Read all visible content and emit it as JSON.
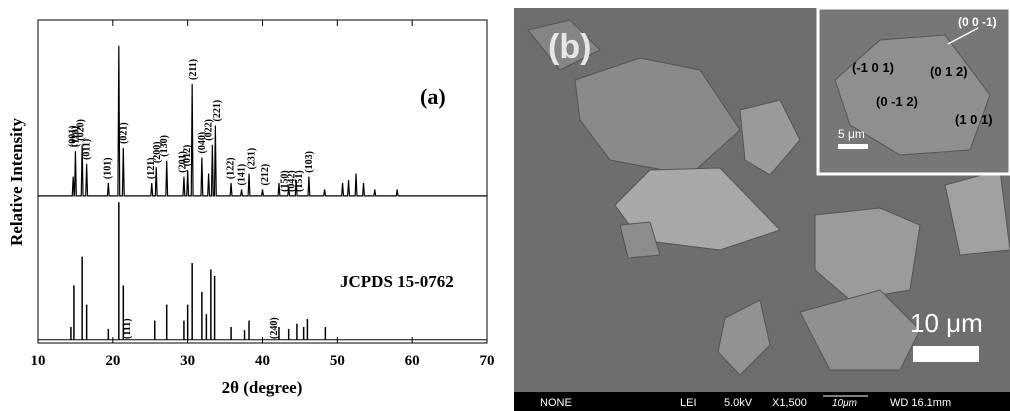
{
  "chart_data": {
    "type": "line",
    "panel_label": "(a)",
    "xlabel": "2θ (degree)",
    "ylabel": "Relative Intensity",
    "xlim": [
      10,
      70
    ],
    "xticks": [
      10,
      20,
      30,
      40,
      50,
      60,
      70
    ],
    "ylim": [
      -1,
      100
    ],
    "series": [
      {
        "color": "#000000",
        "x": [
          10,
          14.58,
          14.7,
          14.82,
          14.88,
          15.0,
          15.12,
          15.78,
          15.9,
          16.02,
          16.38,
          16.5,
          16.62,
          19.28,
          19.4,
          19.52,
          20.68,
          20.8,
          20.92,
          21.28,
          21.4,
          21.52,
          25.08,
          25.2,
          25.32,
          25.68,
          25.8,
          25.92,
          27.08,
          27.2,
          27.32,
          29.38,
          29.5,
          29.62,
          29.88,
          30.0,
          30.12,
          30.48,
          30.6,
          30.72,
          31.78,
          31.9,
          32.02,
          32.68,
          32.8,
          32.92,
          33.18,
          33.3,
          33.42,
          33.58,
          33.7,
          33.82,
          35.68,
          35.8,
          35.92,
          37.08,
          37.2,
          37.32,
          38.08,
          38.2,
          38.32,
          39.88,
          40.0,
          40.12,
          42.08,
          42.2,
          42.32,
          43.38,
          43.5,
          43.62,
          44.38,
          44.5,
          44.62,
          46.08,
          46.2,
          46.32,
          48.18,
          48.3,
          48.42,
          50.58,
          50.7,
          50.82,
          51.38,
          51.5,
          51.62,
          52.38,
          52.5,
          52.62,
          53.38,
          53.5,
          53.62,
          54.88,
          55.0,
          55.12,
          57.88,
          58.0,
          58.12,
          70
        ],
        "values": [
          45,
          45,
          51,
          45,
          45,
          59,
          45,
          45,
          61,
          45,
          45,
          55,
          45,
          45,
          49,
          45,
          45,
          92,
          45,
          45,
          60,
          45,
          45,
          49,
          45,
          45,
          54,
          45,
          45,
          56,
          45,
          45,
          51,
          45,
          45,
          53,
          45,
          45,
          80,
          45,
          45,
          57,
          45,
          45,
          52,
          45,
          45,
          61,
          45,
          45,
          67,
          45,
          45,
          49,
          45,
          45,
          47,
          45,
          45,
          52,
          45,
          45,
          47,
          45,
          45,
          49,
          45,
          45,
          48,
          45,
          45,
          50,
          45,
          45,
          51,
          45,
          45,
          47,
          45,
          45,
          49,
          45,
          45,
          50,
          45,
          45,
          52,
          45,
          45,
          49,
          45,
          45,
          47,
          45,
          45,
          47,
          45,
          45
        ]
      }
    ],
    "peaks": [
      {
        "label": "(001)",
        "x": 14.7
      },
      {
        "label": "(110)",
        "x": 15.1
      },
      {
        "label": "(020)",
        "x": 15.8
      },
      {
        "label": "(011)",
        "x": 16.6
      },
      {
        "label": "(101)",
        "x": 19.4
      },
      {
        "label": "(111)",
        "x": 22.0
      },
      {
        "label": "(021)",
        "x": 21.5
      },
      {
        "label": "(121)",
        "x": 25.2
      },
      {
        "label": "(200)",
        "x": 26.0
      },
      {
        "label": "(130)",
        "x": 26.9
      },
      {
        "label": "(201)",
        "x": 29.4
      },
      {
        "label": "(012)",
        "x": 30.0
      },
      {
        "label": "(211)",
        "x": 30.8
      },
      {
        "label": "(040)",
        "x": 32.0
      },
      {
        "label": "(022)",
        "x": 32.9
      },
      {
        "label": "(221)",
        "x": 34.0
      },
      {
        "label": "(122)",
        "x": 35.8
      },
      {
        "label": "(141)",
        "x": 37.3
      },
      {
        "label": "(231)",
        "x": 38.6
      },
      {
        "label": "(212)",
        "x": 40.4
      },
      {
        "label": "(240)",
        "x": 41.6
      },
      {
        "label": "(150)",
        "x": 43.0
      },
      {
        "label": "(042)",
        "x": 44.0
      },
      {
        "label": "(151)",
        "x": 45.0
      },
      {
        "label": "(103)",
        "x": 46.3
      }
    ],
    "reference": {
      "label": "JCPDS 15-0762",
      "color": "#000000",
      "x": [
        14.4,
        14.8,
        15.9,
        16.5,
        19.4,
        20.8,
        21.4,
        25.6,
        27.2,
        29.5,
        30.0,
        30.6,
        31.9,
        32.5,
        33.1,
        33.6,
        35.8,
        37.6,
        38.2,
        42.2,
        43.5,
        44.6,
        45.5,
        46.0,
        48.4
      ],
      "values": [
        4,
        17,
        26,
        11,
        3.4,
        43,
        17,
        6,
        11,
        6,
        11,
        24,
        15,
        8,
        22,
        20,
        4,
        3,
        6,
        4,
        3.4,
        5,
        4,
        6.5,
        4
      ]
    }
  },
  "sem_image": {
    "panel_label": "(b)",
    "scale_label": "10 μm",
    "inset": {
      "facets": [
        "(0 0 -1)",
        "(-1 0 1)",
        "(0 1 2)",
        "(0 -1 2)",
        "(1 0 1)"
      ],
      "scale_label": "5 μm"
    },
    "footer": [
      "NONE",
      "LEI",
      "5.0kV",
      "X1,500",
      "10μm",
      "WD 16.1mm"
    ]
  }
}
